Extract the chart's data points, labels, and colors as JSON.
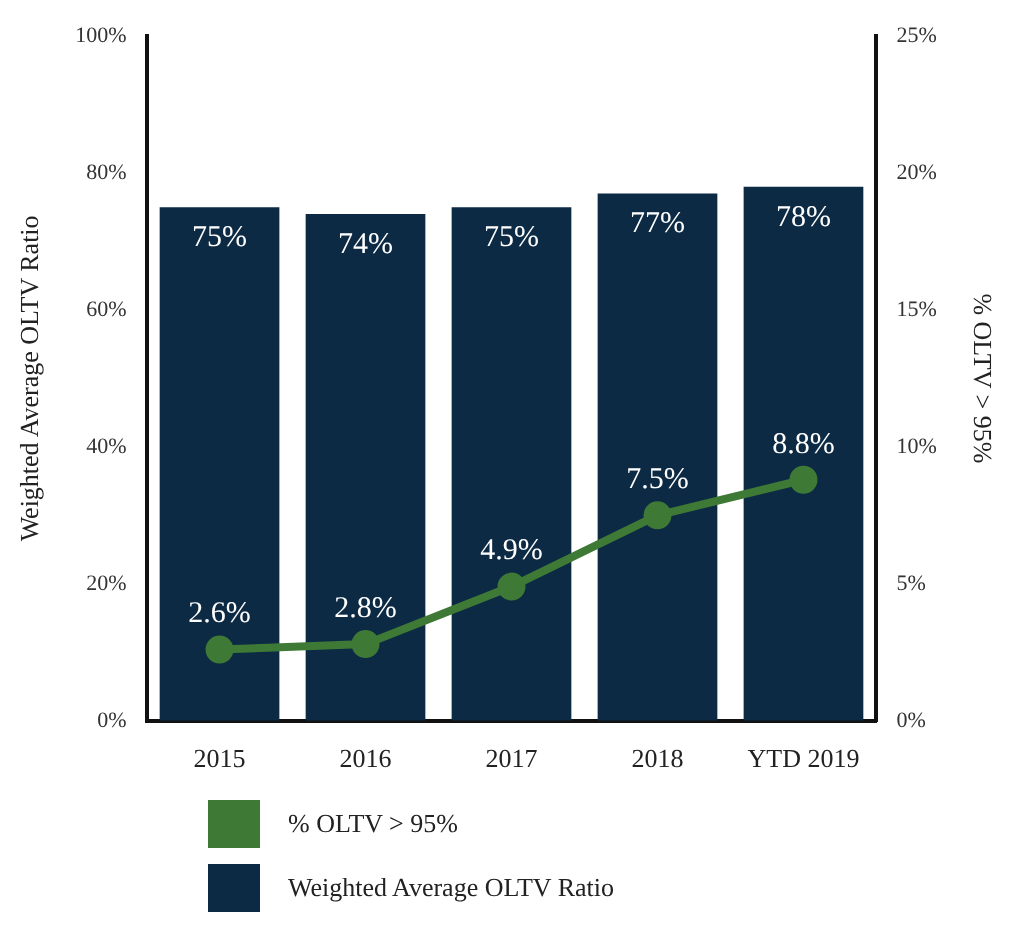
{
  "chart_data": {
    "type": "bar",
    "ylabel": "Weighted Average OLTV Ratio",
    "y2label": "% OLTV > 95%",
    "categories": [
      "2015",
      "2016",
      "2017",
      "2018",
      "YTD 2019"
    ],
    "series": [
      {
        "name": "% OLTV > 95%",
        "type": "line",
        "axis": "y2",
        "color": "#3e7a36",
        "values": [
          2.6,
          2.8,
          4.9,
          7.5,
          8.8
        ],
        "value_labels": [
          "2.6%",
          "2.8%",
          "4.9%",
          "7.5%",
          "8.8%"
        ]
      },
      {
        "name": "Weighted Average OLTV Ratio",
        "color": "#0c2a44",
        "values": [
          75,
          74,
          75,
          77,
          78
        ],
        "value_labels": [
          "75%",
          "74%",
          "75%",
          "77%",
          "78%"
        ]
      }
    ],
    "ylim": [
      0,
      100
    ],
    "yticks": [
      {
        "value": 0,
        "label": "0%"
      },
      {
        "value": 20,
        "label": "20%"
      },
      {
        "value": 40,
        "label": "40%"
      },
      {
        "value": 60,
        "label": "60%"
      },
      {
        "value": 80,
        "label": "80%"
      },
      {
        "value": 100,
        "label": "100%"
      }
    ],
    "y2lim": [
      0,
      25
    ],
    "y2ticks": [
      {
        "value": 0,
        "label": "0%"
      },
      {
        "value": 5,
        "label": "5%"
      },
      {
        "value": 10,
        "label": "10%"
      },
      {
        "value": 15,
        "label": "15%"
      },
      {
        "value": 20,
        "label": "20%"
      },
      {
        "value": 25,
        "label": "25%"
      }
    ],
    "grid": false,
    "legend": "bottom left",
    "marker": "circle",
    "line_style": "solid"
  }
}
